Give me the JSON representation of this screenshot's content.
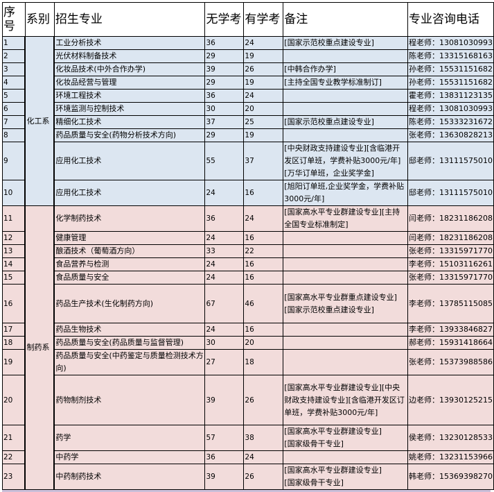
{
  "headers": {
    "seq": "序号",
    "dept": "系别",
    "major": "招生专业",
    "no_exam": "无学考",
    "exam": "有学考",
    "note": "备注",
    "phone": "专业咨询电话"
  },
  "colors": {
    "chem_bg": "#dce6f1",
    "pharm_bg": "#f2dcdb"
  },
  "departments": {
    "chem": "化工系",
    "pharm": "制药系"
  },
  "rows": [
    {
      "seq": "1",
      "major": "工业分析技术",
      "no_exam": "36",
      "exam": "24",
      "note": "[国家示范校重点建设专业]",
      "phone": "程老师：13081030993"
    },
    {
      "seq": "2",
      "major": "光伏材料制备技术",
      "no_exam": "29",
      "exam": "19",
      "note": "",
      "phone": "陈老师：13315168163"
    },
    {
      "seq": "3",
      "major": "化妆品技术(中外合作办学)",
      "no_exam": "39",
      "exam": "26",
      "note": "[中韩合作办学]",
      "phone": "孙老师：15531151682"
    },
    {
      "seq": "4",
      "major": "化妆品经营与管理",
      "no_exam": "29",
      "exam": "19",
      "note": "[主持全国专业教学标准制订]",
      "phone": "孙老师：15531151682"
    },
    {
      "seq": "5",
      "major": "环境工程技术",
      "no_exam": "36",
      "exam": "24",
      "note": "",
      "phone": "霍老师：13831123135"
    },
    {
      "seq": "6",
      "major": "环境监测与控制技术",
      "no_exam": "30",
      "exam": "20",
      "note": "",
      "phone": "程老师：13081030993"
    },
    {
      "seq": "7",
      "major": "精细化工技术",
      "no_exam": "37",
      "exam": "25",
      "note": "[国家示范校重点建设专业]",
      "phone": "陈老师：15333231672"
    },
    {
      "seq": "8",
      "major": "药品质量与安全(药物分析技术方向)",
      "no_exam": "29",
      "exam": "19",
      "note": "",
      "phone": "张老师：13630828213"
    },
    {
      "seq": "9",
      "major": "应用化工技术",
      "no_exam": "55",
      "exam": "37",
      "note": "[中央财政支持建设专业][含临港开发区订单班，学费补贴3000元/年][万华订单班，企业奖学金]",
      "phone": "邸老师：13111575010"
    },
    {
      "seq": "10",
      "major": "应用化工技术",
      "no_exam": "24",
      "exam": "16",
      "note": "[旭阳订单班,企业奖学金，学费补贴3000元/年]",
      "phone": "邸老师：13111575010"
    },
    {
      "seq": "11",
      "major": "化学制药技术",
      "no_exam": "36",
      "exam": "24",
      "note": "[国家高水平专业群建设专业][主持全国专业标准制定]",
      "phone": "闫老师：18231186208"
    },
    {
      "seq": "12",
      "major": "健康管理",
      "no_exam": "24",
      "exam": "16",
      "note": "",
      "phone": "闫老师：18231186208"
    },
    {
      "seq": "13",
      "major": "酿酒技术（葡萄酒方向）",
      "no_exam": "33",
      "exam": "22",
      "note": "",
      "phone": "张老师：13315971770"
    },
    {
      "seq": "14",
      "major": "食品营养与检测",
      "no_exam": "24",
      "exam": "16",
      "note": "",
      "phone": "李老师：15103116261"
    },
    {
      "seq": "15",
      "major": "食品质量与安全",
      "no_exam": "24",
      "exam": "16",
      "note": "",
      "phone": "张老师：13315971770"
    },
    {
      "seq": "16",
      "major": "药品生产技术(生化制药方向)",
      "no_exam": "67",
      "exam": "46",
      "note": "[国家高水平专业群重点建设专业]\n[国家示范校重点建设专业]",
      "phone": "李老师：13785115085"
    },
    {
      "seq": "17",
      "major": "药品生物技术",
      "no_exam": "24",
      "exam": "16",
      "note": "",
      "phone": "李老师：13933846827"
    },
    {
      "seq": "18",
      "major": "药品质量与安全(药品质量与监督管理)",
      "no_exam": "30",
      "exam": "20",
      "note": "",
      "phone": "郝老师：15931418664"
    },
    {
      "seq": "19",
      "major": "药品质量与安全(中药鉴定与质量检测技术方向)",
      "no_exam": "27",
      "exam": "18",
      "note": "",
      "phone": "张老师：15373988586"
    },
    {
      "seq": "20",
      "major": "药物制剂技术",
      "no_exam": "39",
      "exam": "26",
      "note": "[国家高水平专业群建设专业][中央财政支持建设专业][含临港开发区订单班，学费补贴3000元/年]",
      "phone": "边老师：13930125215"
    },
    {
      "seq": "21",
      "major": "药学",
      "no_exam": "57",
      "exam": "38",
      "note": "[国家高水平专业群建设专业]\n[国家级骨干专业]",
      "phone": "侯老师：13230128533"
    },
    {
      "seq": "22",
      "major": "中药学",
      "no_exam": "36",
      "exam": "24",
      "note": "",
      "phone": "姚老师：13231153966"
    },
    {
      "seq": "23",
      "major": "中药制药技术",
      "no_exam": "39",
      "exam": "26",
      "note": "[国家高水平专业群建设专业]\n[国家级骨干专业]",
      "phone": "韩老师：15369398270"
    }
  ]
}
